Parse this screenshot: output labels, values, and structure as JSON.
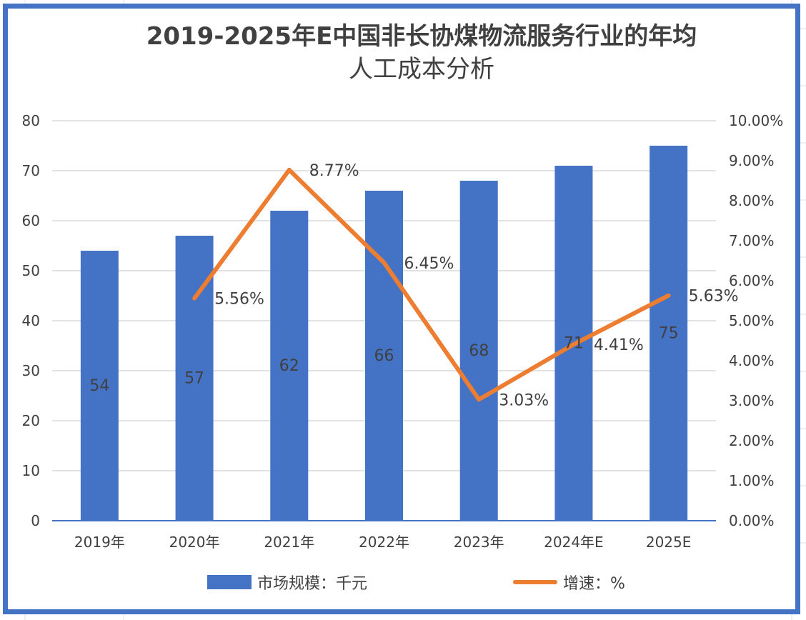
{
  "title_line1": "2019-2025年E中国非长协煤物流服务行业的年均",
  "title_line2": "人工成本分析",
  "colors": {
    "bar": "#4472c4",
    "line": "#ed7d31",
    "frame": "#4472c4",
    "text": "#404040",
    "grid": "#d9d9d9"
  },
  "legend": {
    "bar_label": "市场规模：千元",
    "line_label": "增速：%"
  },
  "chart_data": {
    "type": "bar+line",
    "title": "2019-2025年E中国非长协煤物流服务行业的年均人工成本分析",
    "categories": [
      "2019年",
      "2020年",
      "2021年",
      "2022年",
      "2023年",
      "2024年E",
      "2025E"
    ],
    "series": [
      {
        "name": "市场规模：千元",
        "type": "bar",
        "axis": "left",
        "values": [
          54,
          57,
          62,
          66,
          68,
          71,
          75
        ],
        "labels": [
          "54",
          "57",
          "62",
          "66",
          "68",
          "71",
          "75"
        ]
      },
      {
        "name": "增速：%",
        "type": "line",
        "axis": "right",
        "values": [
          null,
          5.56,
          8.77,
          6.45,
          3.03,
          4.41,
          5.63
        ],
        "labels": [
          "",
          "5.56%",
          "8.77%",
          "6.45%",
          "3.03%",
          "4.41%",
          "5.63%"
        ]
      }
    ],
    "y_left": {
      "min": 0,
      "max": 80,
      "step": 10,
      "ticks": [
        "0",
        "10",
        "20",
        "30",
        "40",
        "50",
        "60",
        "70",
        "80"
      ]
    },
    "y_right": {
      "min": 0,
      "max": 10,
      "step": 1,
      "ticks": [
        "0.00%",
        "1.00%",
        "2.00%",
        "3.00%",
        "4.00%",
        "5.00%",
        "6.00%",
        "7.00%",
        "8.00%",
        "9.00%",
        "10.00%"
      ]
    },
    "grid": true,
    "legend_position": "bottom"
  }
}
